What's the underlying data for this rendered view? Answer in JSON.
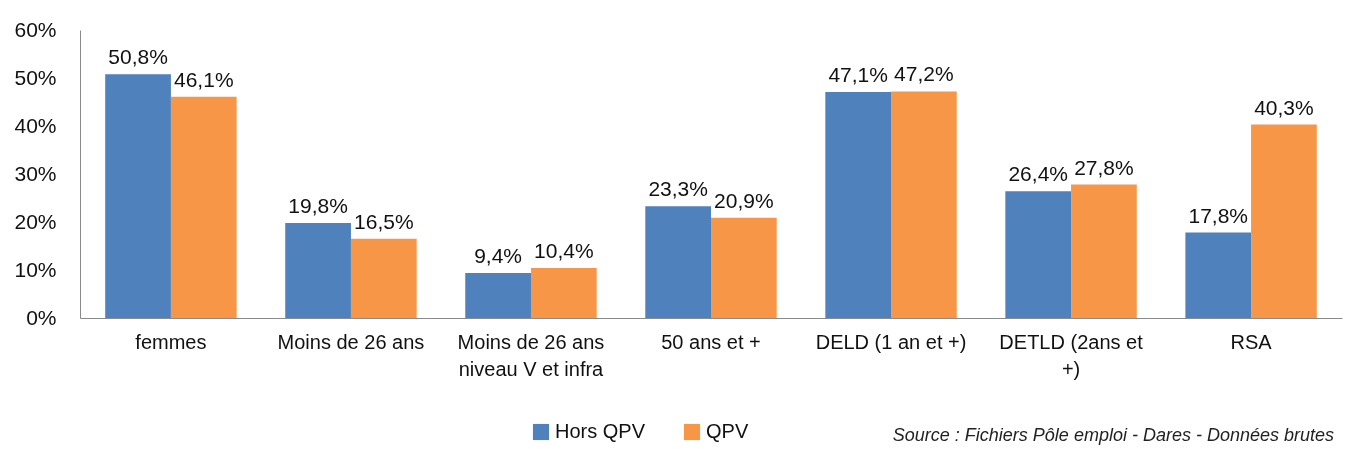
{
  "chart_data": {
    "type": "bar",
    "categories": [
      "femmes",
      "Moins de 26 ans",
      "Moins de 26 ans niveau V et infra",
      "50 ans et +",
      "DELD (1 an et +)",
      "DETLD (2ans et +)",
      "RSA"
    ],
    "series": [
      {
        "name": "Hors QPV",
        "color": "#4f81bd",
        "values": [
          50.8,
          19.8,
          9.4,
          23.3,
          47.1,
          26.4,
          17.8
        ],
        "value_labels": [
          "50,8%",
          "19,8%",
          "9,4%",
          "23,3%",
          "47,1%",
          "26,4%",
          "17,8%"
        ]
      },
      {
        "name": "QPV",
        "color": "#f79646",
        "values": [
          46.1,
          16.5,
          10.4,
          20.9,
          47.2,
          27.8,
          40.3
        ],
        "value_labels": [
          "46,1%",
          "16,5%",
          "10,4%",
          "20,9%",
          "47,2%",
          "27,8%",
          "40,3%"
        ]
      }
    ],
    "ylim": [
      0,
      60
    ],
    "yticks": [
      {
        "value": 0,
        "label": "0%"
      },
      {
        "value": 10,
        "label": "10%"
      },
      {
        "value": 20,
        "label": "20%"
      },
      {
        "value": 30,
        "label": "30%"
      },
      {
        "value": 40,
        "label": "40%"
      },
      {
        "value": 50,
        "label": "50%"
      },
      {
        "value": 60,
        "label": "60%"
      }
    ],
    "legend": "bottom",
    "annotations": [
      "Source : Fichiers Pôle emploi - Dares - Données brutes"
    ]
  }
}
